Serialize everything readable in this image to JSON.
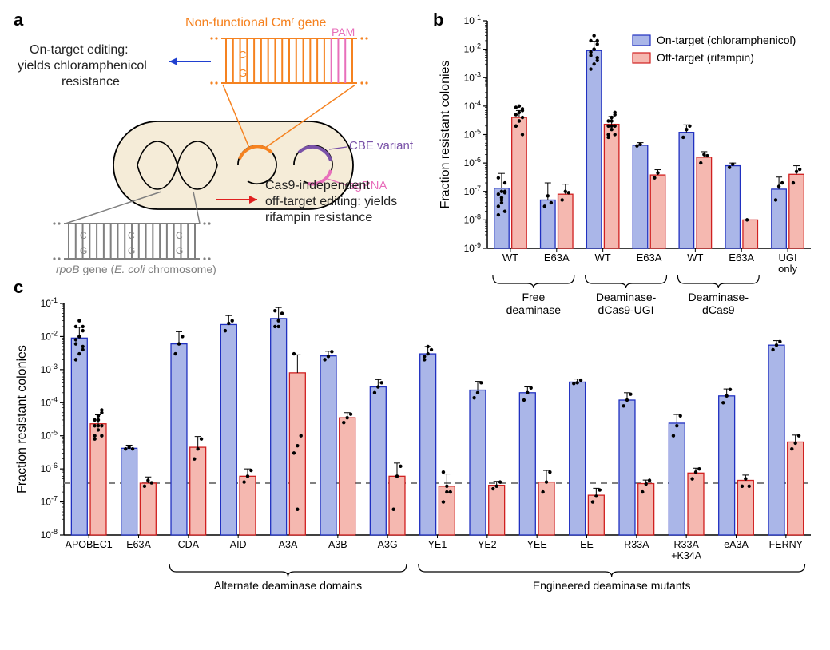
{
  "labels": {
    "a": "a",
    "b": "b",
    "c": "c"
  },
  "panel_a": {
    "cmr_title": "Non-functional Cmʳ gene",
    "pam": "PAM",
    "on_target_text1": "On-target editing:",
    "on_target_text2": "yields chloramphenicol",
    "on_target_text3": "resistance",
    "cbe_variant": "CBE variant",
    "sgrna": "sgRNA",
    "rpob_gene": "rpoB gene (E. coli chromosome)",
    "off_target_text1": "Cas9-independent",
    "off_target_text2": "off-target editing: yields",
    "off_target_text3": "rifampin resistance",
    "colors": {
      "orange": "#f58220",
      "pink": "#e86fbb",
      "gray": "#808080",
      "purple": "#7a52a8",
      "blue_arrow": "#2040d0",
      "red_arrow": "#e02020",
      "cell_fill": "#f5ecd8",
      "on_text": "#222222",
      "off_text": "#222222"
    }
  },
  "panel_b": {
    "ylabel": "Fraction resistant colonies",
    "legend": {
      "on": "On-target (chloramphenicol)",
      "off": "Off-target (rifampin)"
    },
    "colors": {
      "on_fill": "#aab6e8",
      "on_stroke": "#2030c0",
      "off_fill": "#f5b8b0",
      "off_stroke": "#d02020",
      "axis": "#000000",
      "dot": "#000000"
    },
    "ylim_exp": [
      -9,
      -1
    ],
    "yticks": [
      -9,
      -8,
      -7,
      -6,
      -5,
      -4,
      -3,
      -2,
      -1
    ],
    "categories": [
      "WT",
      "E63A",
      "WT",
      "E63A",
      "WT",
      "E63A",
      "UGI\nonly"
    ],
    "groups": [
      {
        "label": "Free\ndeaminase",
        "start": 0,
        "end": 1
      },
      {
        "label": "Deaminase-\ndCas9-UGI",
        "start": 2,
        "end": 3
      },
      {
        "label": "Deaminase-\ndCas9",
        "start": 4,
        "end": 5
      }
    ],
    "bars": [
      {
        "on": 1.3e-07,
        "on_err": 3e-07,
        "off": 4e-05,
        "off_err": 3e-05,
        "on_dots": [
          3e-08,
          5e-08,
          2e-08,
          1.5e-08,
          1e-07,
          1e-07,
          8e-08,
          6e-08,
          2e-07,
          3e-07,
          4e-08,
          9e-08
        ],
        "off_dots": [
          2e-05,
          3e-05,
          4e-05,
          5e-05,
          6e-05,
          8e-05,
          2e-05,
          3e-05,
          1e-05,
          9e-05,
          0.0001,
          7e-05
        ]
      },
      {
        "on": 5e-08,
        "on_err": 1.5e-07,
        "off": 8e-08,
        "off_err": 1e-07,
        "on_dots": [
          3e-08,
          7e-08,
          4e-08
        ],
        "off_dots": [
          5e-08,
          1e-07,
          9e-08
        ]
      },
      {
        "on": 0.009,
        "on_err": 0.01,
        "off": 2.3e-05,
        "off_err": 2e-05,
        "on_dots": [
          0.002,
          0.003,
          0.005,
          0.008,
          0.01,
          0.015,
          0.02,
          0.03,
          0.004,
          0.006,
          0.01,
          0.02
        ],
        "off_dots": [
          1e-05,
          1.5e-05,
          2e-05,
          3e-05,
          4e-05,
          6e-05,
          8e-06,
          2e-05,
          5e-05,
          2e-05,
          3e-05,
          1e-05
        ]
      },
      {
        "on": 4.2e-06,
        "on_err": 1e-06,
        "off": 3.8e-07,
        "off_err": 2e-07,
        "on_dots": [
          4e-06,
          4.5e-06
        ],
        "off_dots": [
          3e-07,
          4.5e-07
        ]
      },
      {
        "on": 1.2e-05,
        "on_err": 1e-05,
        "off": 1.6e-06,
        "off_err": 9e-07,
        "on_dots": [
          8e-06,
          1.5e-05,
          2e-05
        ],
        "off_dots": [
          1e-06,
          2e-06,
          1.8e-06
        ]
      },
      {
        "on": 8e-07,
        "on_err": 2e-07,
        "off": 1e-08,
        "off_err": 0,
        "on_dots": [
          7e-07,
          9e-07
        ],
        "off_dots": [
          1e-08
        ]
      },
      {
        "on": 1.2e-07,
        "on_err": 2e-07,
        "off": 4e-07,
        "off_err": 4e-07,
        "on_dots": [
          5e-08,
          1.5e-07,
          2e-07
        ],
        "off_dots": [
          2e-07,
          5e-07,
          6e-07
        ]
      }
    ]
  },
  "panel_c": {
    "ylabel": "Fraction resistant colonies",
    "colors": {
      "on_fill": "#aab6e8",
      "on_stroke": "#2030c0",
      "off_fill": "#f5b8b0",
      "off_stroke": "#d02020",
      "axis": "#000000",
      "dot": "#000000",
      "ref_line": "#808080"
    },
    "ylim_exp": [
      -8,
      -1
    ],
    "yticks": [
      -8,
      -7,
      -6,
      -5,
      -4,
      -3,
      -2,
      -1
    ],
    "ref_line_value": 3.7e-07,
    "categories": [
      "APOBEC1",
      "E63A",
      "CDA",
      "AID",
      "A3A",
      "A3B",
      "A3G",
      "YE1",
      "YE2",
      "YEE",
      "EE",
      "R33A",
      "R33A\n+K34A",
      "eA3A",
      "FERNY"
    ],
    "groups": [
      {
        "label": "Alternate deaminase domains",
        "start": 2,
        "end": 6
      },
      {
        "label": "Engineered deaminase mutants",
        "start": 7,
        "end": 14
      }
    ],
    "bars": [
      {
        "on": 0.009,
        "on_err": 0.01,
        "off": 2.3e-05,
        "off_err": 2e-05,
        "on_dots": [
          0.002,
          0.003,
          0.005,
          0.008,
          0.01,
          0.015,
          0.02,
          0.03,
          0.004,
          0.006,
          0.01,
          0.02
        ],
        "off_dots": [
          1e-05,
          1.5e-05,
          2e-05,
          3e-05,
          4e-05,
          6e-05,
          8e-06,
          2e-05,
          5e-05,
          2e-05,
          3e-05,
          1e-05
        ]
      },
      {
        "on": 4.2e-06,
        "on_err": 1e-06,
        "off": 3.7e-07,
        "off_err": 2e-07,
        "on_dots": [
          4e-06,
          4.5e-06,
          4e-06
        ],
        "off_dots": [
          3e-07,
          4.5e-07,
          3.8e-07
        ]
      },
      {
        "on": 0.006,
        "on_err": 0.008,
        "off": 4.5e-06,
        "off_err": 5e-06,
        "on_dots": [
          0.003,
          0.006,
          0.01
        ],
        "off_dots": [
          2e-06,
          4e-06,
          8e-06
        ]
      },
      {
        "on": 0.023,
        "on_err": 0.02,
        "off": 6e-07,
        "off_err": 4e-07,
        "on_dots": [
          0.015,
          0.025,
          0.03
        ],
        "off_dots": [
          4e-07,
          6e-07,
          9e-07
        ]
      },
      {
        "on": 0.035,
        "on_err": 0.04,
        "off": 0.0008,
        "off_err": 0.002,
        "on_dots": [
          0.02,
          0.03,
          0.05,
          0.06,
          0.02
        ],
        "off_dots": [
          3e-06,
          5e-06,
          1e-05,
          0.003,
          6e-08
        ]
      },
      {
        "on": 0.0026,
        "on_err": 0.001,
        "off": 3.5e-05,
        "off_err": 1.5e-05,
        "on_dots": [
          0.002,
          0.0025,
          0.0035
        ],
        "off_dots": [
          2.5e-05,
          3.5e-05,
          4.5e-05
        ]
      },
      {
        "on": 0.0003,
        "on_err": 0.0002,
        "off": 6e-07,
        "off_err": 9e-07,
        "on_dots": [
          0.0002,
          0.0003,
          0.0004
        ],
        "off_dots": [
          6e-08,
          6e-07,
          1.2e-06
        ]
      },
      {
        "on": 0.003,
        "on_err": 0.002,
        "off": 3e-07,
        "off_err": 4e-07,
        "on_dots": [
          0.002,
          0.003,
          0.004,
          0.0025,
          0.005
        ],
        "off_dots": [
          8e-07,
          2e-07,
          2e-07,
          1e-07,
          3e-07
        ]
      },
      {
        "on": 0.00024,
        "on_err": 0.0002,
        "off": 3.2e-07,
        "off_err": 1e-07,
        "on_dots": [
          0.00014,
          0.0002,
          0.0004
        ],
        "off_dots": [
          2.5e-07,
          3e-07,
          4e-07
        ]
      },
      {
        "on": 0.0002,
        "on_err": 0.0001,
        "off": 4e-07,
        "off_err": 5e-07,
        "on_dots": [
          0.00012,
          0.0002,
          0.00028
        ],
        "off_dots": [
          2e-07,
          4e-07,
          8e-07
        ]
      },
      {
        "on": 0.00042,
        "on_err": 0.0001,
        "off": 1.6e-07,
        "off_err": 1e-07,
        "on_dots": [
          0.00038,
          0.0004,
          0.00048
        ],
        "off_dots": [
          1e-07,
          1.5e-07,
          2.3e-07
        ]
      },
      {
        "on": 0.00012,
        "on_err": 8e-05,
        "off": 3.6e-07,
        "off_err": 1e-07,
        "on_dots": [
          8e-05,
          0.00012,
          0.00018
        ],
        "off_dots": [
          2e-07,
          3.5e-07,
          4.5e-07
        ]
      },
      {
        "on": 2.4e-05,
        "on_err": 2e-05,
        "off": 7.5e-07,
        "off_err": 3e-07,
        "on_dots": [
          1e-05,
          2e-05,
          4e-05
        ],
        "off_dots": [
          5e-07,
          8e-07,
          1e-06
        ]
      },
      {
        "on": 0.00016,
        "on_err": 0.0001,
        "off": 4.5e-07,
        "off_err": 2e-07,
        "on_dots": [
          0.0001,
          0.00016,
          0.00025
        ],
        "off_dots": [
          3e-07,
          5e-07,
          3e-07
        ]
      },
      {
        "on": 0.0055,
        "on_err": 0.002,
        "off": 6.5e-06,
        "off_err": 4e-06,
        "on_dots": [
          0.004,
          0.0055,
          0.007
        ],
        "off_dots": [
          4e-06,
          6e-06,
          1e-05
        ]
      }
    ]
  }
}
